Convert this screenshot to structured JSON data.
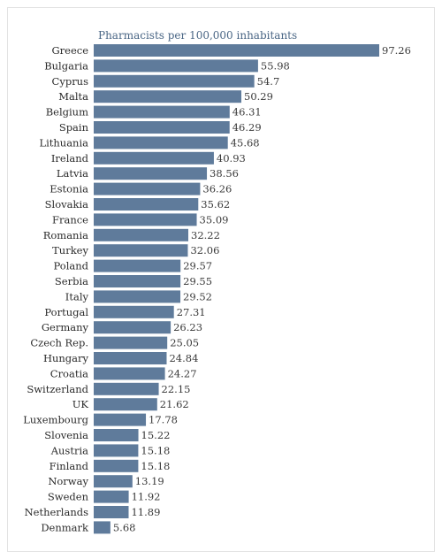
{
  "chart_data": {
    "type": "bar",
    "orientation": "horizontal",
    "title": "Pharmacists per 100,000 inhabitants",
    "xlabel": "",
    "ylabel": "",
    "xlim": [
      0,
      97.26
    ],
    "grid": false,
    "legend": "none",
    "bar_color": "#5f7b9b",
    "categories": [
      "Greece",
      "Bulgaria",
      "Cyprus",
      "Malta",
      "Belgium",
      "Spain",
      "Lithuania",
      "Ireland",
      "Latvia",
      "Estonia",
      "Slovakia",
      "France",
      "Romania",
      "Turkey",
      "Poland",
      "Serbia",
      "Italy",
      "Portugal",
      "Germany",
      "Czech Rep.",
      "Hungary",
      "Croatia",
      "Switzerland",
      "UK",
      "Luxembourg",
      "Slovenia",
      "Austria",
      "Finland",
      "Norway",
      "Sweden",
      "Netherlands",
      "Denmark"
    ],
    "values": [
      97.26,
      55.98,
      54.7,
      50.29,
      46.31,
      46.29,
      45.68,
      40.93,
      38.56,
      36.26,
      35.62,
      35.09,
      32.22,
      32.06,
      29.57,
      29.55,
      29.52,
      27.31,
      26.23,
      25.05,
      24.84,
      24.27,
      22.15,
      21.62,
      17.78,
      15.22,
      15.18,
      15.18,
      13.19,
      11.92,
      11.89,
      5.68
    ],
    "value_labels": [
      "97.26",
      "55.98",
      "54.7",
      "50.29",
      "46.31",
      "46.29",
      "45.68",
      "40.93",
      "38.56",
      "36.26",
      "35.62",
      "35.09",
      "32.22",
      "32.06",
      "29.57",
      "29.55",
      "29.52",
      "27.31",
      "26.23",
      "25.05",
      "24.84",
      "24.27",
      "22.15",
      "21.62",
      "17.78",
      "15.22",
      "15.18",
      "15.18",
      "13.19",
      "11.92",
      "11.89",
      "5.68"
    ]
  }
}
